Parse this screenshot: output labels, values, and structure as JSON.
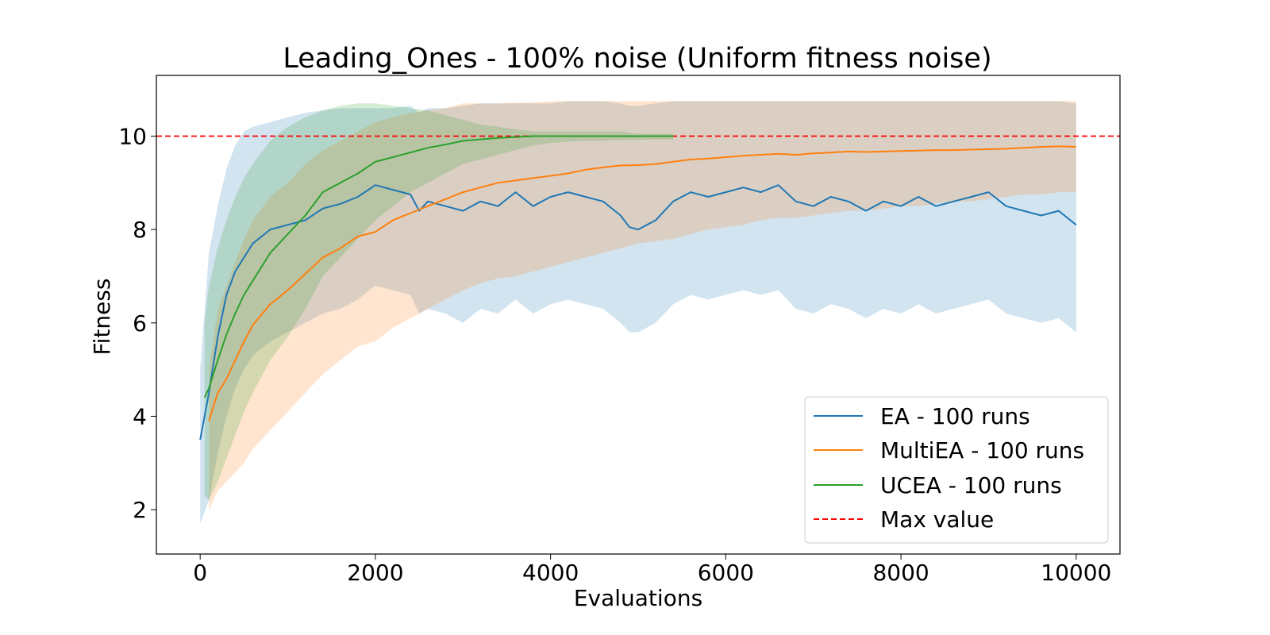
{
  "chart_data": {
    "type": "line",
    "title": "Leading_Ones - 100% noise (Uniform fitness noise)",
    "xlabel": "Evaluations",
    "ylabel": "Fitness",
    "xlim": [
      -500,
      10500
    ],
    "ylim": [
      1.05,
      11.3
    ],
    "xticks": [
      0,
      2000,
      4000,
      6000,
      8000,
      10000
    ],
    "xtick_labels": [
      "0",
      "2000",
      "4000",
      "6000",
      "8000",
      "10000"
    ],
    "yticks": [
      2,
      4,
      6,
      8,
      10
    ],
    "ytick_labels": [
      "2",
      "4",
      "6",
      "8",
      "10"
    ],
    "grid": false,
    "legend_position": "lower-right",
    "reference_line": {
      "name": "Max value",
      "y": 10,
      "color": "#ff0000",
      "style": "dashed"
    },
    "series": [
      {
        "name": "EA - 100 runs",
        "color": "#1f77b4",
        "x": [
          0,
          100,
          200,
          300,
          400,
          500,
          600,
          800,
          1000,
          1200,
          1400,
          1600,
          1800,
          2000,
          2200,
          2400,
          2500,
          2600,
          2800,
          3000,
          3200,
          3400,
          3600,
          3800,
          4000,
          4200,
          4400,
          4600,
          4800,
          4900,
          5000,
          5200,
          5400,
          5600,
          5800,
          6000,
          6200,
          6400,
          6600,
          6800,
          7000,
          7200,
          7400,
          7600,
          7800,
          8000,
          8200,
          8400,
          8600,
          8800,
          9000,
          9200,
          9400,
          9600,
          9800,
          10000
        ],
        "mean": [
          3.5,
          4.5,
          5.7,
          6.6,
          7.1,
          7.4,
          7.7,
          8.0,
          8.1,
          8.2,
          8.45,
          8.55,
          8.7,
          8.95,
          8.85,
          8.75,
          8.4,
          8.6,
          8.5,
          8.4,
          8.6,
          8.5,
          8.8,
          8.5,
          8.7,
          8.8,
          8.7,
          8.6,
          8.3,
          8.05,
          8.0,
          8.2,
          8.6,
          8.8,
          8.7,
          8.8,
          8.9,
          8.8,
          8.95,
          8.6,
          8.5,
          8.7,
          8.6,
          8.4,
          8.6,
          8.5,
          8.7,
          8.5,
          8.6,
          8.7,
          8.8,
          8.5,
          8.4,
          8.3,
          8.4,
          8.1
        ],
        "upper": [
          5.0,
          7.5,
          8.5,
          9.3,
          9.8,
          10.1,
          10.2,
          10.3,
          10.4,
          10.5,
          10.55,
          10.6,
          10.6,
          10.6,
          10.6,
          10.65,
          10.5,
          10.6,
          10.6,
          10.65,
          10.7,
          10.7,
          10.7,
          10.7,
          10.7,
          10.75,
          10.75,
          10.75,
          10.7,
          10.65,
          10.65,
          10.7,
          10.75,
          10.75,
          10.75,
          10.75,
          10.75,
          10.75,
          10.75,
          10.75,
          10.75,
          10.75,
          10.75,
          10.75,
          10.75,
          10.75,
          10.75,
          10.75,
          10.75,
          10.75,
          10.75,
          10.75,
          10.75,
          10.75,
          10.75,
          10.7
        ],
        "lower": [
          1.7,
          2.2,
          3.2,
          4.0,
          4.6,
          5.0,
          5.3,
          5.6,
          5.8,
          6.0,
          6.2,
          6.3,
          6.5,
          6.8,
          6.7,
          6.6,
          6.2,
          6.3,
          6.2,
          6.0,
          6.3,
          6.2,
          6.5,
          6.2,
          6.4,
          6.5,
          6.4,
          6.3,
          6.0,
          5.8,
          5.8,
          6.0,
          6.4,
          6.6,
          6.5,
          6.6,
          6.7,
          6.6,
          6.7,
          6.3,
          6.2,
          6.4,
          6.3,
          6.1,
          6.3,
          6.2,
          6.4,
          6.2,
          6.3,
          6.4,
          6.5,
          6.2,
          6.1,
          6.0,
          6.1,
          5.8
        ]
      },
      {
        "name": "MultiEA - 100 runs",
        "color": "#ff7f0e",
        "x": [
          100,
          200,
          300,
          400,
          500,
          600,
          800,
          1000,
          1200,
          1400,
          1600,
          1800,
          2000,
          2200,
          2400,
          2600,
          2800,
          3000,
          3200,
          3400,
          3600,
          3800,
          4000,
          4200,
          4400,
          4600,
          4800,
          5000,
          5200,
          5400,
          5600,
          5800,
          6000,
          6200,
          6400,
          6600,
          6800,
          7000,
          7200,
          7400,
          7600,
          7800,
          8000,
          8200,
          8400,
          8600,
          8800,
          9000,
          9200,
          9400,
          9600,
          9800,
          10000
        ],
        "mean": [
          3.9,
          4.5,
          4.8,
          5.2,
          5.6,
          5.95,
          6.4,
          6.7,
          7.05,
          7.4,
          7.6,
          7.85,
          7.95,
          8.2,
          8.35,
          8.5,
          8.65,
          8.8,
          8.9,
          9.0,
          9.05,
          9.1,
          9.15,
          9.2,
          9.28,
          9.33,
          9.37,
          9.38,
          9.4,
          9.45,
          9.5,
          9.52,
          9.55,
          9.58,
          9.6,
          9.62,
          9.6,
          9.63,
          9.65,
          9.67,
          9.66,
          9.67,
          9.68,
          9.69,
          9.7,
          9.7,
          9.71,
          9.72,
          9.73,
          9.75,
          9.77,
          9.78,
          9.77
        ],
        "upper": [
          5.0,
          6.3,
          6.8,
          7.3,
          7.8,
          8.2,
          8.7,
          9.0,
          9.4,
          9.7,
          9.9,
          10.1,
          10.3,
          10.4,
          10.5,
          10.55,
          10.6,
          10.7,
          10.7,
          10.7,
          10.72,
          10.72,
          10.75,
          10.75,
          10.75,
          10.75,
          10.75,
          10.75,
          10.75,
          10.75,
          10.75,
          10.75,
          10.75,
          10.75,
          10.75,
          10.75,
          10.75,
          10.75,
          10.75,
          10.75,
          10.75,
          10.75,
          10.75,
          10.75,
          10.75,
          10.75,
          10.75,
          10.75,
          10.75,
          10.75,
          10.75,
          10.75,
          10.75
        ],
        "lower": [
          2.0,
          2.4,
          2.6,
          2.8,
          3.0,
          3.3,
          3.7,
          4.1,
          4.5,
          4.9,
          5.2,
          5.5,
          5.6,
          5.9,
          6.1,
          6.3,
          6.5,
          6.7,
          6.85,
          6.95,
          7.0,
          7.1,
          7.2,
          7.3,
          7.4,
          7.5,
          7.6,
          7.7,
          7.75,
          7.8,
          7.9,
          8.0,
          8.05,
          8.1,
          8.2,
          8.25,
          8.25,
          8.3,
          8.35,
          8.4,
          8.4,
          8.45,
          8.5,
          8.5,
          8.55,
          8.6,
          8.6,
          8.65,
          8.7,
          8.75,
          8.75,
          8.8,
          8.8
        ]
      },
      {
        "name": "UCEA - 100 runs",
        "color": "#2ca02c",
        "x": [
          50,
          100,
          200,
          300,
          400,
          500,
          600,
          800,
          1000,
          1200,
          1400,
          1600,
          1800,
          2000,
          2200,
          2400,
          2600,
          2800,
          3000,
          3200,
          3400,
          3600,
          3800,
          4000,
          4200,
          4400,
          4600,
          4800,
          5000,
          5200,
          5400
        ],
        "mean": [
          4.4,
          4.6,
          5.2,
          5.75,
          6.2,
          6.6,
          6.9,
          7.5,
          7.9,
          8.3,
          8.8,
          9.0,
          9.2,
          9.45,
          9.55,
          9.65,
          9.75,
          9.82,
          9.9,
          9.93,
          9.96,
          9.98,
          10.0,
          10.0,
          10.0,
          10.0,
          10.0,
          10.0,
          10.0,
          10.0,
          10.0
        ],
        "upper": [
          6.0,
          6.8,
          7.6,
          8.2,
          8.7,
          9.1,
          9.4,
          9.9,
          10.2,
          10.4,
          10.55,
          10.65,
          10.7,
          10.7,
          10.65,
          10.6,
          10.55,
          10.45,
          10.35,
          10.25,
          10.2,
          10.15,
          10.1,
          10.1,
          10.1,
          10.1,
          10.1,
          10.1,
          10.05,
          10.05,
          10.05
        ],
        "lower": [
          2.3,
          2.2,
          2.6,
          3.1,
          3.6,
          4.1,
          4.5,
          5.2,
          5.7,
          6.3,
          7.0,
          7.4,
          7.8,
          8.2,
          8.5,
          8.8,
          9.0,
          9.2,
          9.4,
          9.5,
          9.6,
          9.7,
          9.8,
          9.85,
          9.88,
          9.9,
          9.9,
          9.92,
          9.92,
          9.93,
          9.93
        ]
      }
    ]
  }
}
